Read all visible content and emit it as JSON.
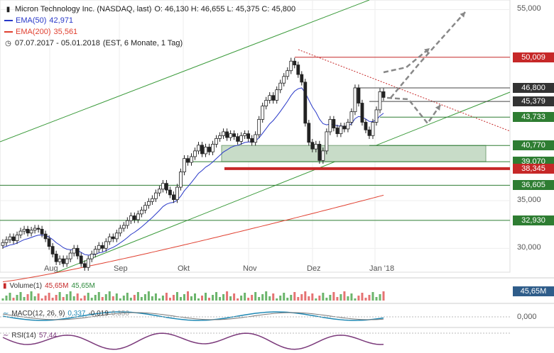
{
  "header": {
    "title": "Micron Technology Inc. (NASDAQ, last)",
    "ohlc": "O: 46,130  H: 46,655  L: 45,375  C: 45,800",
    "ema50_label": "EMA(50)",
    "ema50_value": "42,971",
    "ema200_label": "EMA(200)",
    "ema200_value": "35,561",
    "period": "07.07.2017 - 05.01.2018",
    "period_detail": "(EST, 6 Monate, 1 Tag)"
  },
  "colors": {
    "up": "#2d8a3c",
    "down": "#c62828",
    "ema50": "#2838c8",
    "ema200": "#e04030",
    "level": "#2e7d32",
    "res": "#c62828",
    "zone": "#c8dcc8"
  },
  "chart_data": {
    "type": "candlestick",
    "ylim": [
      27500,
      56000
    ],
    "y_ticks": [
      "30,000",
      "35,000",
      "55,000"
    ],
    "x_ticks": [
      "Aug",
      "Sep",
      "Okt",
      "Nov",
      "Dez",
      "Jan '18"
    ],
    "closes": [
      30.6,
      30.9,
      31.2,
      30.8,
      31.4,
      31.8,
      32.0,
      31.6,
      31.9,
      32.1,
      32.0,
      31.5,
      31.0,
      30.2,
      29.4,
      28.6,
      28.9,
      28.4,
      28.9,
      29.5,
      30.0,
      29.2,
      28.4,
      28.0,
      28.9,
      29.4,
      29.9,
      30.3,
      30.0,
      30.7,
      31.2,
      31.0,
      31.6,
      32.1,
      32.4,
      32.9,
      33.4,
      33.0,
      33.6,
      34.0,
      34.5,
      34.9,
      35.2,
      35.8,
      36.2,
      36.8,
      36.1,
      35.6,
      35.1,
      36.4,
      38.0,
      39.4,
      39.0,
      39.6,
      40.2,
      40.8,
      39.9,
      40.6,
      40.1,
      40.9,
      41.5,
      41.8,
      42.2,
      41.6,
      42.0,
      41.7,
      41.2,
      41.8,
      42.0,
      41.5,
      41.1,
      41.9,
      43.5,
      44.9,
      45.5,
      46.0,
      45.5,
      46.6,
      47.3,
      48.0,
      48.6,
      49.6,
      49.2,
      48.2,
      47.4,
      43.1,
      41.1,
      40.4,
      40.9,
      39.2,
      40.2,
      42.2,
      43.5,
      42.6,
      42.0,
      42.8,
      42.5,
      43.2,
      44.3,
      46.8,
      45.2,
      43.2,
      42.4,
      41.8,
      43.2,
      44.5,
      46.4,
      45.8
    ],
    "levels": [
      {
        "label": "50,009",
        "value": 50009
      },
      {
        "label": "46,800",
        "value": 46800
      },
      {
        "label": "45,379",
        "value": 45379
      },
      {
        "label": "43,733",
        "value": 43733
      },
      {
        "label": "40,770",
        "value": 40770
      },
      {
        "label": "39,070",
        "value": 39070
      },
      {
        "label": "38,345",
        "value": 38345
      },
      {
        "label": "36,605",
        "value": 36605
      },
      {
        "label": "32,930",
        "value": 32930
      }
    ],
    "ema50_start": 30.0,
    "ema50_end": 42.971,
    "ema200_start": 26.5,
    "ema200_end": 35.561
  },
  "volume": {
    "label": "Volume(1)",
    "value1": "45,65M",
    "value2": "45,65M",
    "tag": "45,65M"
  },
  "macd": {
    "label": "MACD(12, 26, 9)",
    "v1": "0,337",
    "v2": "-0,019",
    "v3": "0,356",
    "tag": "0,000"
  },
  "rsi": {
    "label": "RSI(14)",
    "value": "57,44"
  }
}
